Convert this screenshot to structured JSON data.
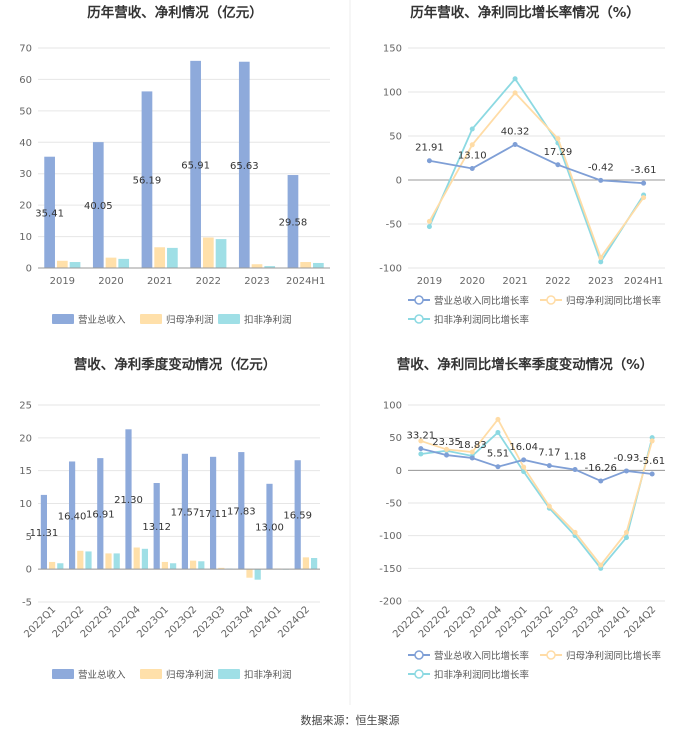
{
  "colors": {
    "revenue": "#8eaadb",
    "net_profit": "#ffe0aa",
    "deducted": "#9fdfe6",
    "line_rev": "#7f9fd6",
    "line_np": "#ffdca6",
    "line_ded": "#8cd9e2"
  },
  "footer": "数据来源：恒生聚源",
  "chart_data": [
    {
      "id": "annual",
      "type": "bar",
      "title": "历年营收、净利情况（亿元）",
      "categories": [
        "2019",
        "2020",
        "2021",
        "2022",
        "2023",
        "2024H1"
      ],
      "ylim": [
        0,
        70
      ],
      "yticks": [
        0,
        10,
        20,
        30,
        40,
        50,
        60,
        70
      ],
      "series": [
        {
          "name": "营业总收入",
          "colorKey": "revenue",
          "values": [
            35.41,
            40.05,
            56.19,
            65.91,
            65.63,
            29.58
          ]
        },
        {
          "name": "归母净利润",
          "colorKey": "net_profit",
          "values": [
            2.3,
            3.3,
            6.6,
            9.7,
            1.2,
            1.9
          ]
        },
        {
          "name": "扣非净利润",
          "colorKey": "deducted",
          "values": [
            1.9,
            2.9,
            6.4,
            9.2,
            0.6,
            1.6
          ]
        }
      ],
      "labels": [
        "35.41",
        "40.05",
        "56.19",
        "65.91",
        "65.63",
        "29.58"
      ]
    },
    {
      "id": "annual_growth",
      "type": "line",
      "title": "历年营收、净利同比增长率情况（%）",
      "categories": [
        "2019",
        "2020",
        "2021",
        "2022",
        "2023",
        "2024H1"
      ],
      "ylim": [
        -100,
        150
      ],
      "yticks": [
        -100,
        -50,
        0,
        50,
        100,
        150
      ],
      "series": [
        {
          "name": "营业总收入同比增长率",
          "colorKey": "line_rev",
          "values": [
            21.91,
            13.1,
            40.32,
            17.29,
            -0.42,
            -3.61
          ]
        },
        {
          "name": "归母净利润同比增长率",
          "colorKey": "line_np",
          "values": [
            -47,
            40,
            99,
            47,
            -88,
            -20
          ]
        },
        {
          "name": "扣非净利润同比增长率",
          "colorKey": "line_ded",
          "values": [
            -53,
            58,
            115,
            42,
            -93,
            -17
          ]
        }
      ],
      "labels": [
        "21.91",
        "13.10",
        "40.32",
        "17.29",
        "-0.42",
        "-3.61"
      ]
    },
    {
      "id": "quarterly",
      "type": "bar",
      "title": "营收、净利季度变动情况（亿元）",
      "categories": [
        "2022Q1",
        "2022Q2",
        "2022Q3",
        "2022Q4",
        "2023Q1",
        "2023Q2",
        "2023Q3",
        "2023Q4",
        "2024Q1",
        "2024Q2"
      ],
      "ylim": [
        -5,
        25
      ],
      "yticks": [
        -5,
        0,
        5,
        10,
        15,
        20,
        25
      ],
      "series": [
        {
          "name": "营业总收入",
          "colorKey": "revenue",
          "values": [
            11.31,
            16.4,
            16.91,
            21.3,
            13.12,
            17.57,
            17.11,
            17.83,
            13.0,
            16.59
          ]
        },
        {
          "name": "归母净利润",
          "colorKey": "net_profit",
          "values": [
            1.1,
            2.8,
            2.4,
            3.3,
            1.1,
            1.3,
            0.2,
            -1.3,
            0.1,
            1.8
          ]
        },
        {
          "name": "扣非净利润",
          "colorKey": "deducted",
          "values": [
            0.9,
            2.7,
            2.4,
            3.1,
            0.9,
            1.2,
            0.1,
            -1.6,
            0.0,
            1.7
          ]
        }
      ],
      "labels": [
        "11.31",
        "16.40",
        "16.91",
        "21.30",
        "13.12",
        "17.57",
        "17.11",
        "17.83",
        "13.00",
        "16.59"
      ]
    },
    {
      "id": "quarterly_growth",
      "type": "line",
      "title": "营收、净利同比增长率季度变动情况（%）",
      "categories": [
        "2022Q1",
        "2022Q2",
        "2022Q3",
        "2022Q4",
        "2023Q1",
        "2023Q2",
        "2023Q3",
        "2023Q4",
        "2024Q1",
        "2024Q2"
      ],
      "ylim": [
        -200,
        100
      ],
      "yticks": [
        -200,
        -150,
        -100,
        -50,
        0,
        50,
        100
      ],
      "series": [
        {
          "name": "营业总收入同比增长率",
          "colorKey": "line_rev",
          "values": [
            33.21,
            23.35,
            18.83,
            5.51,
            16.04,
            7.17,
            1.18,
            -16.26,
            -0.93,
            -5.61
          ]
        },
        {
          "name": "归母净利润同比增长率",
          "colorKey": "line_np",
          "values": [
            45,
            32,
            28,
            78,
            5,
            -55,
            -95,
            -145,
            -95,
            45
          ]
        },
        {
          "name": "扣非净利润同比增长率",
          "colorKey": "line_ded",
          "values": [
            25,
            30,
            22,
            58,
            -2,
            -58,
            -100,
            -150,
            -103,
            50
          ]
        }
      ],
      "labels": [
        "33.21",
        "23.35",
        "18.83",
        "5.51",
        "16.04",
        "7.17",
        "1.18",
        "-16.26",
        "-0.93",
        "-5.61"
      ]
    }
  ]
}
